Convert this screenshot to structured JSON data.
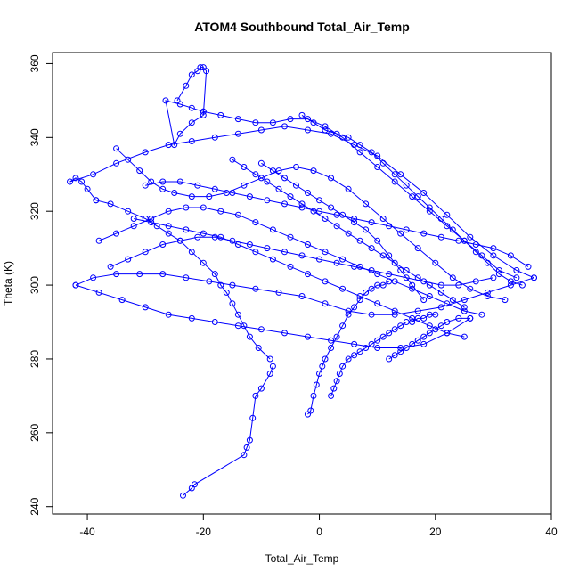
{
  "chart_data": {
    "type": "scatter",
    "title": "ATOM4 Southbound Total_Air_Temp",
    "xlabel": "Total_Air_Temp",
    "ylabel": "Theta (K)",
    "xlim": [
      -46,
      40
    ],
    "ylim": [
      238,
      363
    ],
    "xticks": [
      -40,
      -20,
      0,
      20,
      40
    ],
    "yticks": [
      240,
      260,
      280,
      300,
      320,
      340,
      360
    ],
    "grid": false,
    "legend": "none",
    "color": "#0000ff",
    "marker": "open-circle",
    "connected": true,
    "series": [
      {
        "x": [
          -23.5,
          -22.0,
          -21.5,
          -13.0,
          -12.5,
          -12.0,
          -11.5,
          -11.0,
          -10.0,
          -8.5,
          -8.0
        ],
        "y": [
          243,
          245,
          246,
          254,
          256,
          258,
          264,
          270,
          272,
          276,
          278
        ]
      },
      {
        "x": [
          -8.5,
          -10.5,
          -12.0,
          -13.0,
          -14.0,
          -15.0,
          -16.0,
          -17.0,
          -18.0,
          -20.0,
          -22.0,
          -24.0,
          -26.0,
          -28.0,
          -30.0,
          -33.0,
          -36.0,
          -38.5
        ],
        "y": [
          280,
          283,
          286,
          289,
          292,
          295,
          298,
          300,
          303,
          306,
          309,
          312,
          314,
          316,
          318,
          320,
          322,
          323
        ]
      },
      {
        "x": [
          -38.5,
          -40.0,
          -41.0,
          -42.0,
          -43.0,
          -39.0,
          -35.0,
          -30.0,
          -26.0,
          -22.0,
          -18.0,
          -14.0,
          -10.0,
          -6.0,
          -2.0,
          2.0,
          6.0,
          10.0,
          14.0,
          18.0,
          22.0,
          26.0,
          30.0,
          34.0,
          37.0
        ],
        "y": [
          323,
          326,
          328,
          329,
          328,
          330,
          333,
          336,
          338,
          339,
          340,
          341,
          342,
          343,
          342,
          341,
          338,
          335,
          330,
          325,
          319,
          313,
          308,
          304,
          302
        ]
      },
      {
        "x": [
          37.0,
          33.0,
          29.0,
          25.0,
          21.0,
          17.0,
          13.0,
          9.0,
          5.0,
          1.0,
          -3.0,
          -7.0,
          -11.0,
          -15.0,
          -19.0,
          -23.0,
          -27.0,
          -31.0,
          -35.0,
          -39.0,
          -42.0
        ],
        "y": [
          302,
          300,
          298,
          296,
          294,
          293,
          292,
          292,
          293,
          295,
          297,
          298,
          299,
          300,
          301,
          302,
          303,
          303,
          303,
          302,
          300
        ]
      },
      {
        "x": [
          -42.0,
          -38.0,
          -34.0,
          -30.0,
          -26.0,
          -22.0,
          -18.0,
          -14.0,
          -10.0,
          -6.0,
          -2.0,
          2.0,
          6.0,
          10.0,
          14.0,
          18.0,
          22.0,
          26.0
        ],
        "y": [
          300,
          298,
          296,
          294,
          292,
          291,
          290,
          289,
          288,
          287,
          286,
          285,
          284,
          283,
          283,
          284,
          287,
          291
        ]
      },
      {
        "x": [
          -24.5,
          -23.0,
          -22.0,
          -21.0,
          -20.5,
          -20.0,
          -19.5,
          -20.0,
          -22.0,
          -24.0,
          -25.0,
          -26.5,
          -24.0,
          -22.0,
          -20.0
        ],
        "y": [
          350,
          354,
          357,
          358,
          359,
          359,
          358,
          346,
          344,
          341,
          338,
          350,
          349,
          348,
          347
        ]
      },
      {
        "x": [
          -20.0,
          -17.0,
          -14.0,
          -11.0,
          -8.0,
          -5.0,
          -2.0,
          1.0,
          4.0,
          7.0,
          10.0,
          13.0,
          16.0,
          19.0,
          22.0,
          25.0,
          28.0,
          31.0,
          34.0
        ],
        "y": [
          347,
          346,
          345,
          344,
          344,
          345,
          345,
          343,
          340,
          336,
          332,
          328,
          324,
          320,
          316,
          312,
          308,
          304,
          302
        ]
      },
      {
        "x": [
          -35.0,
          -33.0,
          -31.0,
          -29.0,
          -27.0,
          -25.0,
          -22.0,
          -19.0,
          -16.0,
          -13.0,
          -10.0,
          -7.0,
          -4.0,
          -1.0,
          2.0,
          5.0,
          8.0,
          11.0,
          14.0,
          17.0,
          20.0,
          23.0,
          26.0,
          29.0,
          32.0
        ],
        "y": [
          337,
          334,
          331,
          328,
          326,
          325,
          324,
          324,
          325,
          327,
          329,
          331,
          332,
          331,
          329,
          326,
          322,
          318,
          314,
          310,
          306,
          302,
          299,
          297,
          296
        ]
      },
      {
        "x": [
          -38.0,
          -35.0,
          -32.0,
          -29.0,
          -26.0,
          -23.0,
          -20.0,
          -17.0,
          -14.0,
          -11.0,
          -8.0,
          -5.0,
          -2.0,
          1.0,
          4.0,
          7.0,
          10.0,
          13.0,
          16.0,
          19.0,
          22.0,
          25.0,
          28.0
        ],
        "y": [
          312,
          314,
          316,
          318,
          320,
          321,
          321,
          320,
          319,
          317,
          315,
          313,
          311,
          309,
          307,
          305,
          303,
          301,
          299,
          297,
          295,
          293,
          292
        ]
      },
      {
        "x": [
          -36.0,
          -33.0,
          -30.0,
          -27.0,
          -24.0,
          -21.0,
          -18.0,
          -15.0,
          -12.0,
          -9.0,
          -6.0,
          -3.0,
          0.0,
          3.0,
          6.0,
          9.0,
          12.0,
          15.0,
          18.0,
          21.0,
          24.0,
          27.0,
          30.0
        ],
        "y": [
          305,
          307,
          309,
          311,
          312,
          313,
          313,
          312,
          311,
          310,
          309,
          308,
          307,
          306,
          305,
          304,
          303,
          302,
          301,
          300,
          300,
          301,
          302
        ]
      },
      {
        "x": [
          -2.0,
          -1.5,
          -1.0,
          -0.5,
          0.0,
          0.5,
          1.0,
          2.0,
          3.0,
          4.0,
          5.0,
          6.0,
          7.0,
          8.0,
          9.0,
          10.0,
          11.0,
          12.0
        ],
        "y": [
          265,
          266,
          270,
          273,
          276,
          278,
          280,
          283,
          286,
          289,
          292,
          294,
          296,
          298,
          299,
          300,
          300,
          301
        ]
      },
      {
        "x": [
          2.0,
          2.5,
          3.0,
          3.5,
          4.0,
          5.0,
          6.0,
          7.0,
          8.0,
          9.0,
          10.0,
          11.0,
          12.0,
          13.0,
          14.0,
          15.0,
          16.0,
          17.0,
          18.0,
          19.0,
          20.0
        ],
        "y": [
          270,
          272,
          274,
          276,
          278,
          280,
          281,
          282,
          283,
          284,
          285,
          286,
          287,
          288,
          289,
          290,
          290,
          291,
          291,
          292,
          292
        ]
      },
      {
        "x": [
          -15.0,
          -13.0,
          -11.0,
          -9.0,
          -7.0,
          -5.0,
          -3.0,
          -1.0,
          1.0,
          3.0,
          5.0,
          7.0,
          9.0,
          11.0,
          13.0,
          15.0,
          17.0,
          19.0,
          21.0,
          23.0,
          25.0
        ],
        "y": [
          334,
          332,
          330,
          328,
          326,
          324,
          322,
          320,
          318,
          316,
          314,
          312,
          310,
          308,
          306,
          304,
          302,
          300,
          298,
          296,
          294
        ]
      },
      {
        "x": [
          -30.0,
          -27.0,
          -24.0,
          -21.0,
          -18.0,
          -15.0,
          -12.0,
          -9.0,
          -6.0,
          -3.0,
          0.0,
          3.0,
          6.0,
          9.0,
          12.0,
          15.0,
          18.0,
          21.0,
          24.0,
          27.0,
          30.0,
          33.0,
          36.0
        ],
        "y": [
          327,
          328,
          328,
          327,
          326,
          325,
          324,
          323,
          322,
          321,
          320,
          319,
          318,
          317,
          316,
          315,
          314,
          313,
          312,
          311,
          310,
          308,
          305
        ]
      },
      {
        "x": [
          -32.0,
          -29.0,
          -26.0,
          -23.0,
          -20.0,
          -17.0,
          -14.0,
          -11.0,
          -8.0,
          -5.0,
          -2.0,
          1.0,
          4.0,
          7.0,
          10.0,
          13.0,
          16.0,
          19.0,
          22.0,
          25.0
        ],
        "y": [
          318,
          317,
          316,
          315,
          314,
          313,
          311,
          309,
          307,
          305,
          303,
          301,
          299,
          297,
          295,
          293,
          291,
          289,
          287,
          286
        ]
      },
      {
        "x": [
          -3.0,
          -1.0,
          1.0,
          3.0,
          5.0,
          7.0,
          9.0,
          11.0,
          13.0,
          15.0,
          17.0,
          19.0,
          21.0,
          23.0,
          25.0,
          27.0,
          29.0,
          31.0,
          33.0,
          35.0
        ],
        "y": [
          346,
          344,
          342,
          341,
          340,
          338,
          336,
          333,
          330,
          327,
          324,
          321,
          318,
          315,
          312,
          309,
          306,
          303,
          301,
          300
        ]
      },
      {
        "x": [
          -10.0,
          -8.0,
          -6.0,
          -4.0,
          -2.0,
          0.0,
          2.0,
          4.0,
          6.0,
          8.0,
          10.0,
          12.0,
          14.0,
          16.0,
          18.0
        ],
        "y": [
          333,
          331,
          329,
          327,
          325,
          323,
          321,
          319,
          317,
          315,
          312,
          308,
          304,
          300,
          296
        ]
      },
      {
        "x": [
          12.0,
          13.0,
          14.0,
          15.0,
          16.0,
          17.0,
          18.0,
          19.0,
          20.0,
          21.0,
          22.0,
          24.0,
          26.0
        ],
        "y": [
          280,
          281,
          282,
          283,
          284,
          285,
          286,
          287,
          288,
          289,
          290,
          291,
          291
        ]
      }
    ]
  }
}
